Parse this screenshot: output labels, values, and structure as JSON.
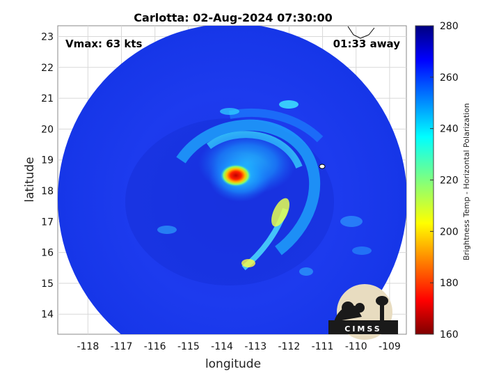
{
  "chart_data": {
    "type": "heatmap",
    "title": "Carlotta: 02-Aug-2024 07:30:00",
    "xlabel": "longitude",
    "ylabel": "latitude",
    "xlim": [
      -118.9,
      -108.5
    ],
    "ylim": [
      13.35,
      23.35
    ],
    "xticks": [
      -118,
      -117,
      -116,
      -115,
      -114,
      -113,
      -112,
      -111,
      -110,
      -109
    ],
    "yticks": [
      14,
      15,
      16,
      17,
      18,
      19,
      20,
      21,
      22,
      23
    ],
    "grid": true,
    "colorbar": {
      "label": "Brightness Temp - Horizontal Polarization",
      "range": [
        160,
        280
      ],
      "ticks": [
        160,
        180,
        200,
        220,
        240,
        260,
        280
      ],
      "colormap": "jet"
    },
    "annotations": {
      "vmax": "Vmax: 63 kts",
      "time_away": "01:33 away"
    },
    "storm_center": {
      "lon": -113.6,
      "lat": 18.35,
      "min_temp": 170
    },
    "logo_text": "CIMSS"
  }
}
